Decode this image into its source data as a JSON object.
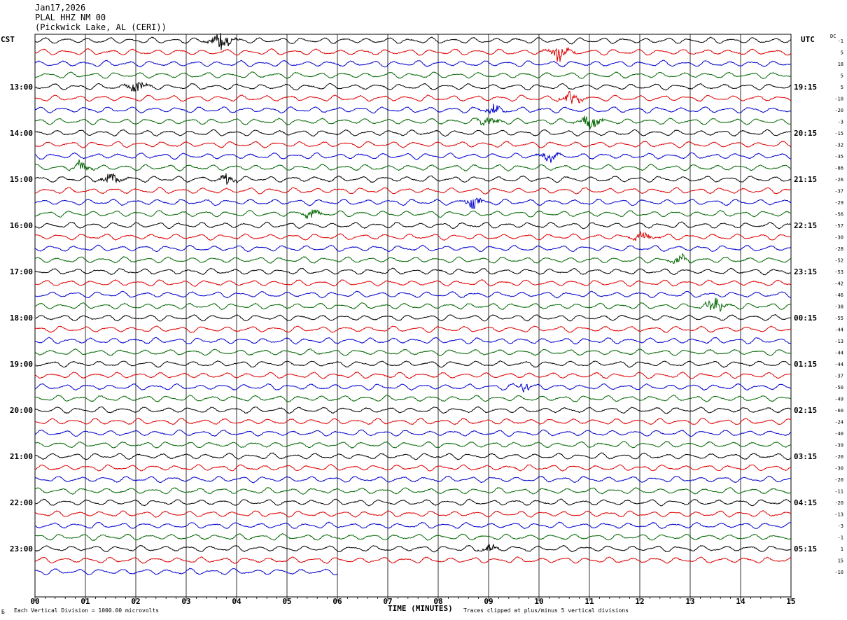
{
  "header": {
    "date": "Jan17,2026",
    "station": "PLAL HHZ NM 00",
    "location": "(Pickwick Lake, AL (CERI))"
  },
  "left_zone": "CST",
  "right_zone": "UTC",
  "dc_label": "DC",
  "footer": {
    "scale_note": "Each Vertical Division = 1000.00 microvolts",
    "clip_note": "Traces clipped at plus/minus 5 vertical divisions",
    "logo": "Б"
  },
  "colors": {
    "cycle": [
      "#000000",
      "#dd0000",
      "#0000cc",
      "#006600"
    ],
    "grid": "#000000"
  },
  "chart_data": {
    "type": "line",
    "title": "",
    "xlabel": "TIME (MINUTES)",
    "ylabel": "",
    "xlim": [
      0,
      15
    ],
    "x_ticks": [
      "00",
      "01",
      "02",
      "03",
      "04",
      "05",
      "06",
      "07",
      "08",
      "09",
      "10",
      "11",
      "12",
      "13",
      "14",
      "15"
    ],
    "trace_interval_minutes": 15,
    "trace_count": 47,
    "last_trace_end_minute": 6,
    "left_hour_labels": [
      "13:00",
      "14:00",
      "15:00",
      "16:00",
      "17:00",
      "18:00",
      "19:00",
      "20:00",
      "21:00",
      "22:00",
      "23:00"
    ],
    "right_hour_labels": [
      "19:15",
      "20:15",
      "21:15",
      "22:15",
      "23:15",
      "00:15",
      "01:15",
      "02:15",
      "03:15",
      "04:15",
      "05:15"
    ],
    "dc_offsets": [
      -1,
      5,
      18,
      5,
      5,
      -10,
      -20,
      -3,
      -15,
      -32,
      -35,
      -86,
      -26,
      -37,
      -29,
      -56,
      -57,
      -30,
      -28,
      -52,
      -53,
      -42,
      -46,
      -38,
      -55,
      -44,
      -13,
      -44,
      -44,
      -37,
      -50,
      -49,
      -60,
      -24,
      -40,
      -39,
      -20,
      -30,
      -20,
      -11,
      -20,
      -13,
      -3,
      -1,
      1,
      15,
      -10
    ],
    "events": [
      {
        "trace": 0,
        "minute": 3.7,
        "strength": 1.6
      },
      {
        "trace": 1,
        "minute": 10.4,
        "strength": 1.4
      },
      {
        "trace": 4,
        "minute": 2.0,
        "strength": 1.0
      },
      {
        "trace": 5,
        "minute": 10.65,
        "strength": 1.2
      },
      {
        "trace": 6,
        "minute": 9.1,
        "strength": 0.9
      },
      {
        "trace": 7,
        "minute": 9.0,
        "strength": 0.8
      },
      {
        "trace": 7,
        "minute": 11.0,
        "strength": 1.3
      },
      {
        "trace": 10,
        "minute": 10.2,
        "strength": 0.8
      },
      {
        "trace": 11,
        "minute": 0.9,
        "strength": 1.1
      },
      {
        "trace": 12,
        "minute": 1.5,
        "strength": 0.9
      },
      {
        "trace": 12,
        "minute": 3.8,
        "strength": 0.8
      },
      {
        "trace": 14,
        "minute": 8.7,
        "strength": 0.8
      },
      {
        "trace": 15,
        "minute": 5.5,
        "strength": 0.7
      },
      {
        "trace": 17,
        "minute": 12.05,
        "strength": 0.8
      },
      {
        "trace": 19,
        "minute": 12.8,
        "strength": 0.6
      },
      {
        "trace": 23,
        "minute": 13.5,
        "strength": 1.4
      },
      {
        "trace": 30,
        "minute": 9.7,
        "strength": 0.8
      },
      {
        "trace": 44,
        "minute": 9.0,
        "strength": 0.7
      }
    ]
  }
}
